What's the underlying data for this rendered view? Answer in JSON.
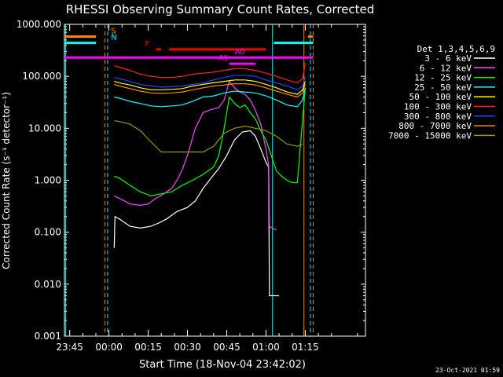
{
  "chart_data": {
    "type": "line",
    "title": "RHESSI Observing Summary Count Rates, Corrected",
    "xlabel": "Start Time (18-Nov-04 23:42:02)",
    "ylabel": "Corrected Count Rate (s⁻¹ detector⁻¹)",
    "y_scale": "log",
    "ylim": [
      0.001,
      1000
    ],
    "xlim_minutes": [
      -17,
      98
    ],
    "x_ticks": [
      {
        "label": "23:45",
        "t": -15
      },
      {
        "label": "00:00",
        "t": 0
      },
      {
        "label": "00:15",
        "t": 15
      },
      {
        "label": "00:30",
        "t": 30
      },
      {
        "label": "00:45",
        "t": 45
      },
      {
        "label": "01:00",
        "t": 60
      },
      {
        "label": "01:15",
        "t": 75
      }
    ],
    "y_ticks": [
      {
        "label": "1000.000",
        "v": 1000
      },
      {
        "label": "100.000",
        "v": 100
      },
      {
        "label": "10.000",
        "v": 10
      },
      {
        "label": "1.000",
        "v": 1
      },
      {
        "label": "0.100",
        "v": 0.1
      },
      {
        "label": "0.010",
        "v": 0.01
      },
      {
        "label": "0.001",
        "v": 0.001
      }
    ],
    "legend_title": "Det 1,3,4,5,6,9",
    "timestamp": "23-Oct-2021 01:59",
    "series": [
      {
        "name": "3 - 6 keV",
        "color": "#ffffff",
        "points": [
          [
            2,
            0.05
          ],
          [
            2.3,
            0.2
          ],
          [
            4,
            0.18
          ],
          [
            8,
            0.13
          ],
          [
            12,
            0.12
          ],
          [
            16,
            0.13
          ],
          [
            19,
            0.15
          ],
          [
            22,
            0.18
          ],
          [
            26,
            0.25
          ],
          [
            30,
            0.3
          ],
          [
            33,
            0.4
          ],
          [
            36,
            0.7
          ],
          [
            39,
            1.1
          ],
          [
            42,
            1.7
          ],
          [
            45,
            3
          ],
          [
            48,
            6
          ],
          [
            51,
            8.5
          ],
          [
            54,
            9
          ],
          [
            56,
            7
          ],
          [
            58,
            4
          ],
          [
            60,
            2.2
          ],
          [
            61,
            1.8
          ],
          [
            61.3,
            0.006
          ],
          [
            65,
            0.006
          ]
        ]
      },
      {
        "name": "6 - 12 keV",
        "color": "#ff44ff",
        "points": [
          [
            2,
            0.5
          ],
          [
            4,
            0.45
          ],
          [
            8,
            0.35
          ],
          [
            12,
            0.33
          ],
          [
            15,
            0.35
          ],
          [
            18,
            0.45
          ],
          [
            21,
            0.55
          ],
          [
            24,
            0.7
          ],
          [
            26,
            1
          ],
          [
            28,
            1.6
          ],
          [
            30,
            3
          ],
          [
            33,
            10
          ],
          [
            36,
            20
          ],
          [
            39,
            23
          ],
          [
            42,
            25
          ],
          [
            44,
            35
          ],
          [
            46,
            80
          ],
          [
            48,
            60
          ],
          [
            50,
            50
          ],
          [
            52,
            45
          ],
          [
            54,
            35
          ],
          [
            56,
            22
          ],
          [
            58,
            12
          ],
          [
            60,
            4
          ],
          [
            61,
            2
          ],
          [
            61.3,
            0.13
          ],
          [
            62.5,
            0.12
          ],
          [
            64,
            0.11
          ]
        ]
      },
      {
        "name": "12 - 25 keV",
        "color": "#00ff00",
        "points": [
          [
            2,
            1.2
          ],
          [
            4,
            1.1
          ],
          [
            8,
            0.8
          ],
          [
            12,
            0.6
          ],
          [
            16,
            0.5
          ],
          [
            20,
            0.55
          ],
          [
            24,
            0.6
          ],
          [
            28,
            0.8
          ],
          [
            32,
            1
          ],
          [
            36,
            1.3
          ],
          [
            40,
            1.8
          ],
          [
            42,
            3
          ],
          [
            44,
            10
          ],
          [
            46,
            40
          ],
          [
            48,
            30
          ],
          [
            50,
            25
          ],
          [
            52,
            28
          ],
          [
            54,
            20
          ],
          [
            56,
            15
          ],
          [
            58,
            9
          ],
          [
            60,
            6
          ],
          [
            62,
            3
          ],
          [
            64,
            1.5
          ],
          [
            66,
            1.2
          ],
          [
            68,
            1
          ],
          [
            70,
            0.9
          ],
          [
            72,
            0.9
          ],
          [
            74,
            15
          ],
          [
            75,
            60
          ]
        ]
      },
      {
        "name": "25 - 50 keV",
        "color": "#00ffff",
        "points": [
          [
            2,
            40
          ],
          [
            4,
            38
          ],
          [
            8,
            33
          ],
          [
            12,
            30
          ],
          [
            16,
            27
          ],
          [
            20,
            26
          ],
          [
            24,
            27
          ],
          [
            28,
            28
          ],
          [
            32,
            33
          ],
          [
            36,
            40
          ],
          [
            40,
            42
          ],
          [
            44,
            48
          ],
          [
            48,
            52
          ],
          [
            52,
            50
          ],
          [
            56,
            48
          ],
          [
            60,
            42
          ],
          [
            64,
            35
          ],
          [
            68,
            28
          ],
          [
            72,
            26
          ],
          [
            74,
            35
          ],
          [
            75,
            60
          ]
        ]
      },
      {
        "name": "50 - 100 keV",
        "color": "#ffff00",
        "points": [
          [
            2,
            80
          ],
          [
            4,
            75
          ],
          [
            8,
            68
          ],
          [
            12,
            60
          ],
          [
            16,
            55
          ],
          [
            20,
            55
          ],
          [
            24,
            56
          ],
          [
            28,
            58
          ],
          [
            32,
            65
          ],
          [
            36,
            70
          ],
          [
            40,
            75
          ],
          [
            44,
            80
          ],
          [
            48,
            85
          ],
          [
            52,
            85
          ],
          [
            56,
            80
          ],
          [
            60,
            70
          ],
          [
            64,
            60
          ],
          [
            68,
            50
          ],
          [
            72,
            45
          ],
          [
            74,
            55
          ],
          [
            75,
            80
          ]
        ]
      },
      {
        "name": "100 - 300 keV",
        "color": "#ff2222",
        "points": [
          [
            2,
            160
          ],
          [
            4,
            150
          ],
          [
            8,
            130
          ],
          [
            12,
            110
          ],
          [
            16,
            100
          ],
          [
            20,
            95
          ],
          [
            24,
            95
          ],
          [
            28,
            100
          ],
          [
            32,
            110
          ],
          [
            36,
            115
          ],
          [
            40,
            120
          ],
          [
            44,
            130
          ],
          [
            48,
            140
          ],
          [
            52,
            140
          ],
          [
            56,
            130
          ],
          [
            60,
            115
          ],
          [
            64,
            100
          ],
          [
            68,
            85
          ],
          [
            72,
            75
          ],
          [
            74,
            90
          ],
          [
            75,
            180
          ]
        ]
      },
      {
        "name": "300 - 800 keV",
        "color": "#2244ff",
        "points": [
          [
            2,
            95
          ],
          [
            4,
            90
          ],
          [
            8,
            80
          ],
          [
            12,
            70
          ],
          [
            16,
            65
          ],
          [
            20,
            62
          ],
          [
            24,
            63
          ],
          [
            28,
            65
          ],
          [
            32,
            70
          ],
          [
            36,
            75
          ],
          [
            40,
            85
          ],
          [
            44,
            95
          ],
          [
            48,
            105
          ],
          [
            52,
            105
          ],
          [
            56,
            100
          ],
          [
            60,
            85
          ],
          [
            64,
            75
          ],
          [
            68,
            65
          ],
          [
            72,
            55
          ],
          [
            74,
            65
          ],
          [
            75,
            100
          ]
        ]
      },
      {
        "name": "800 - 7000 keV",
        "color": "#ff8800",
        "points": [
          [
            2,
            70
          ],
          [
            4,
            65
          ],
          [
            8,
            58
          ],
          [
            12,
            52
          ],
          [
            16,
            48
          ],
          [
            20,
            47
          ],
          [
            24,
            48
          ],
          [
            28,
            50
          ],
          [
            32,
            55
          ],
          [
            36,
            60
          ],
          [
            40,
            65
          ],
          [
            44,
            68
          ],
          [
            48,
            72
          ],
          [
            52,
            72
          ],
          [
            56,
            68
          ],
          [
            60,
            60
          ],
          [
            64,
            52
          ],
          [
            68,
            45
          ],
          [
            72,
            40
          ],
          [
            74,
            48
          ],
          [
            75,
            70
          ]
        ]
      },
      {
        "name": "7000 - 15000 keV",
        "color": "#999900",
        "points": [
          [
            2,
            14
          ],
          [
            4,
            13.5
          ],
          [
            8,
            12
          ],
          [
            12,
            9
          ],
          [
            16,
            5.5
          ],
          [
            20,
            3.5
          ],
          [
            24,
            3.5
          ],
          [
            28,
            3.5
          ],
          [
            32,
            3.5
          ],
          [
            36,
            3.5
          ],
          [
            40,
            4.5
          ],
          [
            44,
            8
          ],
          [
            48,
            10
          ],
          [
            52,
            11
          ],
          [
            56,
            10
          ],
          [
            60,
            9
          ],
          [
            64,
            7
          ],
          [
            68,
            5
          ],
          [
            72,
            4.5
          ],
          [
            74,
            5
          ]
        ]
      }
    ],
    "flag_bars": [
      {
        "label": "S",
        "color": "#ff8800",
        "level": 580,
        "segments": [
          [
            -17,
            -5
          ],
          [
            76,
            78
          ]
        ]
      },
      {
        "label": "N",
        "color": "#00ffff",
        "level": 440,
        "segments": [
          [
            -17,
            -5
          ],
          [
            63,
            78
          ]
        ]
      },
      {
        "label": "F",
        "color": "#ff0000",
        "level": 330,
        "segments": [
          [
            18,
            20
          ],
          [
            23,
            60
          ]
        ]
      },
      {
        "label": "A0",
        "color": "#ff00ff",
        "level": 230,
        "segments": [
          [
            -17,
            78
          ]
        ]
      },
      {
        "label": "A1",
        "color": "#ff00ff",
        "level": 175,
        "segments": [
          [
            46,
            56
          ]
        ]
      }
    ],
    "markers": [
      {
        "t": -16.5,
        "color": "#00ffff",
        "style": "solid"
      },
      {
        "t": -1.5,
        "color": "#ff8800",
        "style": "dashed"
      },
      {
        "t": -0.5,
        "color": "#00ffff",
        "style": "dashed"
      },
      {
        "t": 62.5,
        "color": "#00ffff",
        "style": "solid"
      },
      {
        "t": 74.5,
        "color": "#ff8800",
        "style": "solid"
      },
      {
        "t": 77,
        "color": "#00ffff",
        "style": "dashed"
      },
      {
        "t": 78,
        "color": "#ff8800",
        "style": "dashed"
      }
    ]
  }
}
